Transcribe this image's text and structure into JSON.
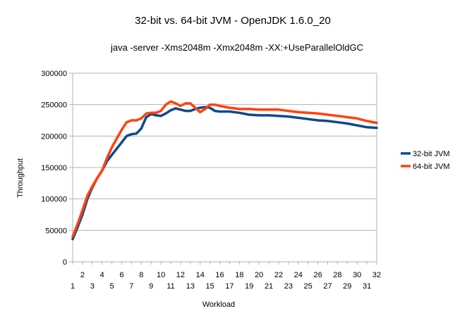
{
  "chart_data": {
    "type": "line",
    "title": "32-bit vs. 64-bit JVM - OpenJDK 1.6.0_20",
    "subtitle": "java -server -Xms2048m -Xmx2048m -XX:+UseParallelOldGC",
    "xlabel": "Workload",
    "ylabel": "Throughput",
    "xlim": [
      1,
      32
    ],
    "ylim": [
      0,
      300000
    ],
    "y_ticks": [
      0,
      50000,
      100000,
      150000,
      200000,
      250000,
      300000
    ],
    "x_ticks_odd": [
      1,
      3,
      5,
      7,
      9,
      11,
      13,
      15,
      17,
      19,
      21,
      23,
      25,
      27,
      29,
      31
    ],
    "x_ticks_even": [
      2,
      4,
      6,
      8,
      10,
      12,
      14,
      16,
      18,
      20,
      22,
      24,
      26,
      28,
      30,
      32
    ],
    "grid": "horizontal",
    "legend": "right",
    "series": [
      {
        "name": "32-bit JVM",
        "color": "#0c4a8c",
        "points": [
          [
            1,
            36000
          ],
          [
            1.5,
            55000
          ],
          [
            2,
            75000
          ],
          [
            2.5,
            100000
          ],
          [
            3,
            118000
          ],
          [
            3.5,
            133000
          ],
          [
            4,
            145000
          ],
          [
            4.5,
            160000
          ],
          [
            5,
            170000
          ],
          [
            5.5,
            180000
          ],
          [
            6,
            190000
          ],
          [
            6.5,
            200000
          ],
          [
            7,
            203000
          ],
          [
            7.5,
            204000
          ],
          [
            8,
            212000
          ],
          [
            8.5,
            230000
          ],
          [
            9,
            235000
          ],
          [
            9.5,
            233000
          ],
          [
            10,
            232000
          ],
          [
            10.5,
            236000
          ],
          [
            11,
            241000
          ],
          [
            11.5,
            244000
          ],
          [
            12,
            242000
          ],
          [
            12.5,
            240000
          ],
          [
            13,
            240000
          ],
          [
            13.5,
            243000
          ],
          [
            14,
            245000
          ],
          [
            14.5,
            246000
          ],
          [
            15,
            245000
          ],
          [
            15.5,
            240000
          ],
          [
            16,
            239000
          ],
          [
            17,
            239000
          ],
          [
            18,
            237000
          ],
          [
            19,
            234000
          ],
          [
            20,
            233000
          ],
          [
            21,
            233000
          ],
          [
            22,
            232000
          ],
          [
            23,
            231000
          ],
          [
            24,
            229000
          ],
          [
            25,
            227000
          ],
          [
            26,
            225000
          ],
          [
            27,
            224000
          ],
          [
            28,
            222000
          ],
          [
            29,
            220000
          ],
          [
            30,
            217000
          ],
          [
            31,
            214000
          ],
          [
            32,
            213000
          ]
        ]
      },
      {
        "name": "64-bit JVM",
        "color": "#ff420e",
        "points": [
          [
            1,
            40000
          ],
          [
            1.5,
            60000
          ],
          [
            2,
            82000
          ],
          [
            2.5,
            105000
          ],
          [
            3,
            120000
          ],
          [
            3.5,
            133000
          ],
          [
            4,
            145000
          ],
          [
            4.5,
            165000
          ],
          [
            5,
            182000
          ],
          [
            5.5,
            196000
          ],
          [
            6,
            210000
          ],
          [
            6.5,
            222000
          ],
          [
            7,
            225000
          ],
          [
            7.5,
            225000
          ],
          [
            8,
            228000
          ],
          [
            8.5,
            236000
          ],
          [
            9,
            237000
          ],
          [
            9.5,
            237000
          ],
          [
            10,
            240000
          ],
          [
            10.5,
            250000
          ],
          [
            11,
            255000
          ],
          [
            11.5,
            252000
          ],
          [
            12,
            248000
          ],
          [
            12.5,
            252000
          ],
          [
            13,
            252000
          ],
          [
            13.5,
            245000
          ],
          [
            14,
            238000
          ],
          [
            14.5,
            243000
          ],
          [
            15,
            250000
          ],
          [
            15.5,
            250000
          ],
          [
            16,
            248000
          ],
          [
            17,
            245000
          ],
          [
            18,
            243000
          ],
          [
            19,
            243000
          ],
          [
            20,
            242000
          ],
          [
            21,
            242000
          ],
          [
            22,
            242000
          ],
          [
            23,
            240000
          ],
          [
            24,
            238000
          ],
          [
            25,
            237000
          ],
          [
            26,
            236000
          ],
          [
            27,
            234000
          ],
          [
            28,
            232000
          ],
          [
            29,
            230000
          ],
          [
            30,
            228000
          ],
          [
            31,
            224000
          ],
          [
            32,
            221000
          ]
        ]
      }
    ]
  }
}
